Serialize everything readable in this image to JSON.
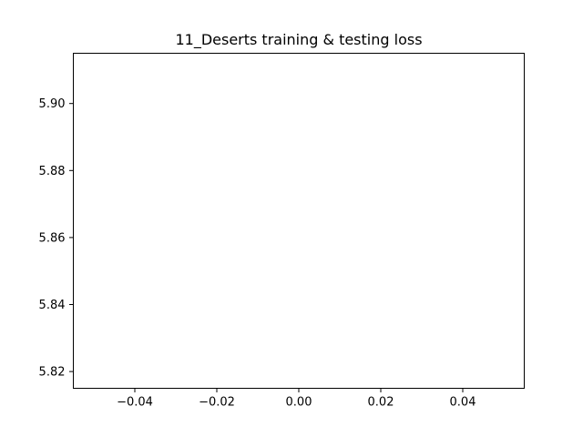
{
  "chart_data": {
    "type": "line",
    "title": "11_Deserts training & testing loss",
    "xlabel": "",
    "ylabel": "",
    "xlim": [
      -0.055,
      0.055
    ],
    "ylim": [
      5.815,
      5.915
    ],
    "xticks": [
      -0.04,
      -0.02,
      0.0,
      0.02,
      0.04
    ],
    "xtick_labels": [
      "−0.04",
      "−0.02",
      "0.00",
      "0.02",
      "0.04"
    ],
    "yticks": [
      5.82,
      5.84,
      5.86,
      5.88,
      5.9
    ],
    "ytick_labels": [
      "5.82",
      "5.84",
      "5.86",
      "5.88",
      "5.90"
    ],
    "series": [],
    "grid": false,
    "legend": "none"
  }
}
